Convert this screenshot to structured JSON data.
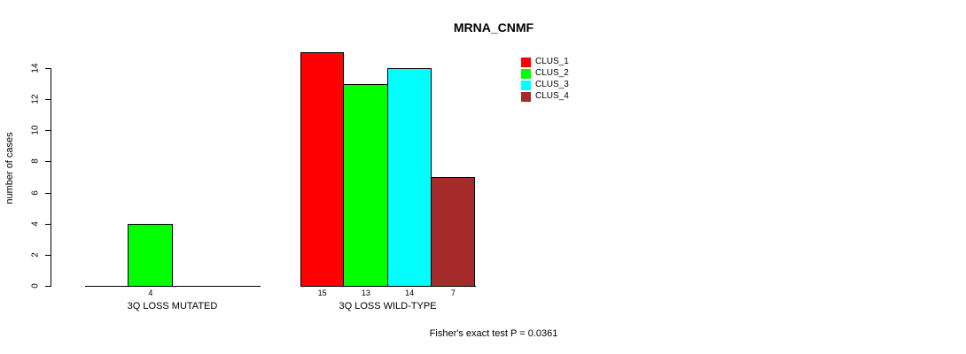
{
  "title": "MRNA_CNMF",
  "footnote": "Fisher's exact test P = 0.0361",
  "colors": {
    "clus_1": "#FF0000",
    "clus_2": "#00FF00",
    "clus_3": "#00FFFF",
    "clus_4": "#A52A2A",
    "axis": "#000000",
    "background": "#FFFFFF"
  },
  "chart_data": {
    "type": "bar",
    "title": "MRNA_CNMF",
    "xlabel": "",
    "ylabel": "number of cases",
    "ylim": [
      0,
      14
    ],
    "yticks": [
      0,
      2,
      4,
      6,
      8,
      10,
      12,
      14
    ],
    "grid": false,
    "legend_position": "top-right",
    "categories": [
      "3Q LOSS MUTATED",
      "3Q LOSS WILD-TYPE"
    ],
    "series": [
      {
        "name": "CLUS_1",
        "color": "#FF0000",
        "values": [
          0,
          15
        ]
      },
      {
        "name": "CLUS_2",
        "color": "#00FF00",
        "values": [
          4,
          13
        ]
      },
      {
        "name": "CLUS_3",
        "color": "#00FFFF",
        "values": [
          0,
          14
        ]
      },
      {
        "name": "CLUS_4",
        "color": "#A52A2A",
        "values": [
          0,
          7
        ]
      }
    ],
    "bar_value_labels": {
      "group_1": [
        null,
        4,
        null,
        null
      ],
      "group_2": [
        15,
        13,
        14,
        7
      ]
    },
    "annotation": "Fisher's exact test P = 0.0361"
  }
}
